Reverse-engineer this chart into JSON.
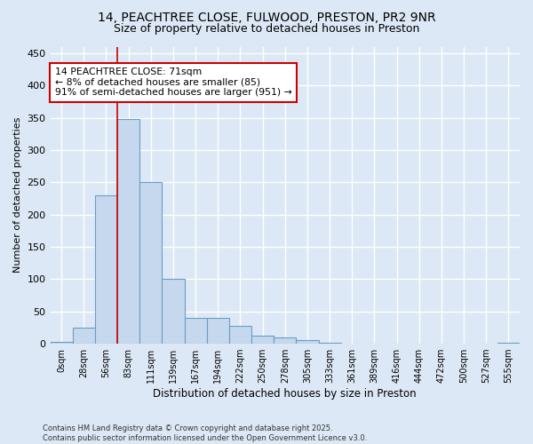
{
  "title_line1": "14, PEACHTREE CLOSE, FULWOOD, PRESTON, PR2 9NR",
  "title_line2": "Size of property relative to detached houses in Preston",
  "xlabel": "Distribution of detached houses by size in Preston",
  "ylabel": "Number of detached properties",
  "bar_labels": [
    "0sqm",
    "28sqm",
    "56sqm",
    "83sqm",
    "111sqm",
    "139sqm",
    "167sqm",
    "194sqm",
    "222sqm",
    "250sqm",
    "278sqm",
    "305sqm",
    "333sqm",
    "361sqm",
    "389sqm",
    "416sqm",
    "444sqm",
    "472sqm",
    "500sqm",
    "527sqm",
    "555sqm"
  ],
  "bar_values": [
    3,
    25,
    230,
    348,
    250,
    100,
    40,
    40,
    28,
    12,
    10,
    5,
    2,
    0,
    0,
    0,
    0,
    0,
    0,
    0,
    2
  ],
  "bar_color": "#c5d8ed",
  "bar_edge_color": "#6a9ec5",
  "background_color": "#dce8f5",
  "grid_color": "#ffffff",
  "property_line_x": 2.5,
  "property_sqm": 71,
  "annotation_text": "14 PEACHTREE CLOSE: 71sqm\n← 8% of detached houses are smaller (85)\n91% of semi-detached houses are larger (951) →",
  "annotation_box_color": "#ffffff",
  "annotation_box_edge": "#cc0000",
  "vline_color": "#cc0000",
  "ylim": [
    0,
    460
  ],
  "yticks": [
    0,
    50,
    100,
    150,
    200,
    250,
    300,
    350,
    400,
    450
  ],
  "footnote": "Contains HM Land Registry data © Crown copyright and database right 2025.\nContains public sector information licensed under the Open Government Licence v3.0."
}
